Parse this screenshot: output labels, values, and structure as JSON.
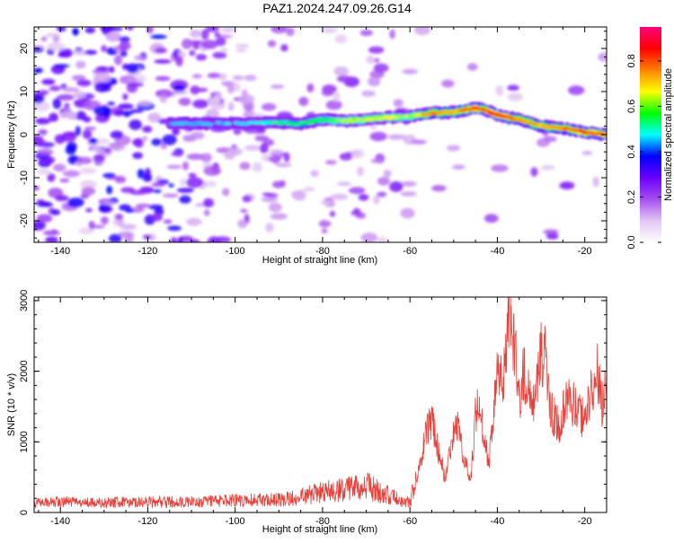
{
  "figure": {
    "title": "PAZ1.2024.247.09.26.G14"
  },
  "chart_data": [
    {
      "type": "heatmap",
      "xlabel": "Height of straight line (km)",
      "ylabel": "Frequency (Hz)",
      "xlim": [
        -146,
        -15
      ],
      "ylim": [
        -25,
        25
      ],
      "xticks": [
        -140,
        -120,
        -100,
        -80,
        -60,
        -40,
        -20
      ],
      "yticks": [
        -20,
        -10,
        0,
        10,
        20
      ],
      "colorbar": {
        "label": "Normalized spectral amplitude",
        "range": [
          0,
          0.95
        ],
        "ticks": [
          0.0,
          0.2,
          0.4,
          0.6,
          0.8
        ],
        "colors": [
          "#ffffff",
          "#e2c6f3",
          "#a64df0",
          "#6a00ff",
          "#0000ff",
          "#00ffff",
          "#00ff00",
          "#ffff00",
          "#ff8000",
          "#ff0000",
          "#ff0080"
        ]
      },
      "ridge": {
        "x": [
          -115,
          -100,
          -90,
          -85,
          -80,
          -75,
          -70,
          -65,
          -60,
          -55,
          -50,
          -45,
          -42,
          -40,
          -35,
          -30,
          -25,
          -20,
          -15
        ],
        "y": [
          2.5,
          2.6,
          2.8,
          2.5,
          3.5,
          3.2,
          3.5,
          4.0,
          4.2,
          5.0,
          5.2,
          6.2,
          5.5,
          4.5,
          3.5,
          2.0,
          1.5,
          0.5,
          0.0
        ],
        "amplitude": [
          0.3,
          0.32,
          0.4,
          0.45,
          0.5,
          0.55,
          0.6,
          0.6,
          0.55,
          0.75,
          0.7,
          0.85,
          0.8,
          0.9,
          0.75,
          0.7,
          0.75,
          0.85,
          0.8
        ]
      },
      "grid": false,
      "legend": "right"
    },
    {
      "type": "line",
      "xlabel": "Height of straight line (km)",
      "ylabel": "SNR (10 * v/v)",
      "xlim": [
        -146,
        -15
      ],
      "ylim": [
        0,
        3050
      ],
      "xticks": [
        -140,
        -120,
        -100,
        -80,
        -60,
        -40,
        -20
      ],
      "yticks": [
        0,
        1000,
        2000,
        3000
      ],
      "series": [
        {
          "color": "#e8403a",
          "x": [
            -146,
            -140,
            -130,
            -120,
            -110,
            -100,
            -90,
            -85,
            -80,
            -75,
            -72,
            -70,
            -68,
            -65,
            -62,
            -60,
            -58,
            -56,
            -55,
            -54,
            -52,
            -50,
            -49,
            -48,
            -46,
            -45,
            -44,
            -42,
            -41,
            -40,
            -39,
            -38,
            -37,
            -36,
            -35,
            -34,
            -32,
            -30,
            -29,
            -28,
            -26,
            -24,
            -22,
            -20,
            -18,
            -17,
            -16,
            -15
          ],
          "y": [
            130,
            150,
            140,
            150,
            150,
            170,
            180,
            220,
            300,
            320,
            350,
            390,
            320,
            250,
            170,
            150,
            600,
            1200,
            1350,
            1000,
            500,
            1100,
            1300,
            800,
            500,
            1400,
            1500,
            700,
            1200,
            2100,
            1900,
            2200,
            3000,
            2300,
            1600,
            2000,
            1400,
            2300,
            2200,
            1500,
            1200,
            1600,
            1500,
            1300,
            1800,
            2000,
            1500,
            1750
          ]
        }
      ],
      "grid": false
    }
  ]
}
